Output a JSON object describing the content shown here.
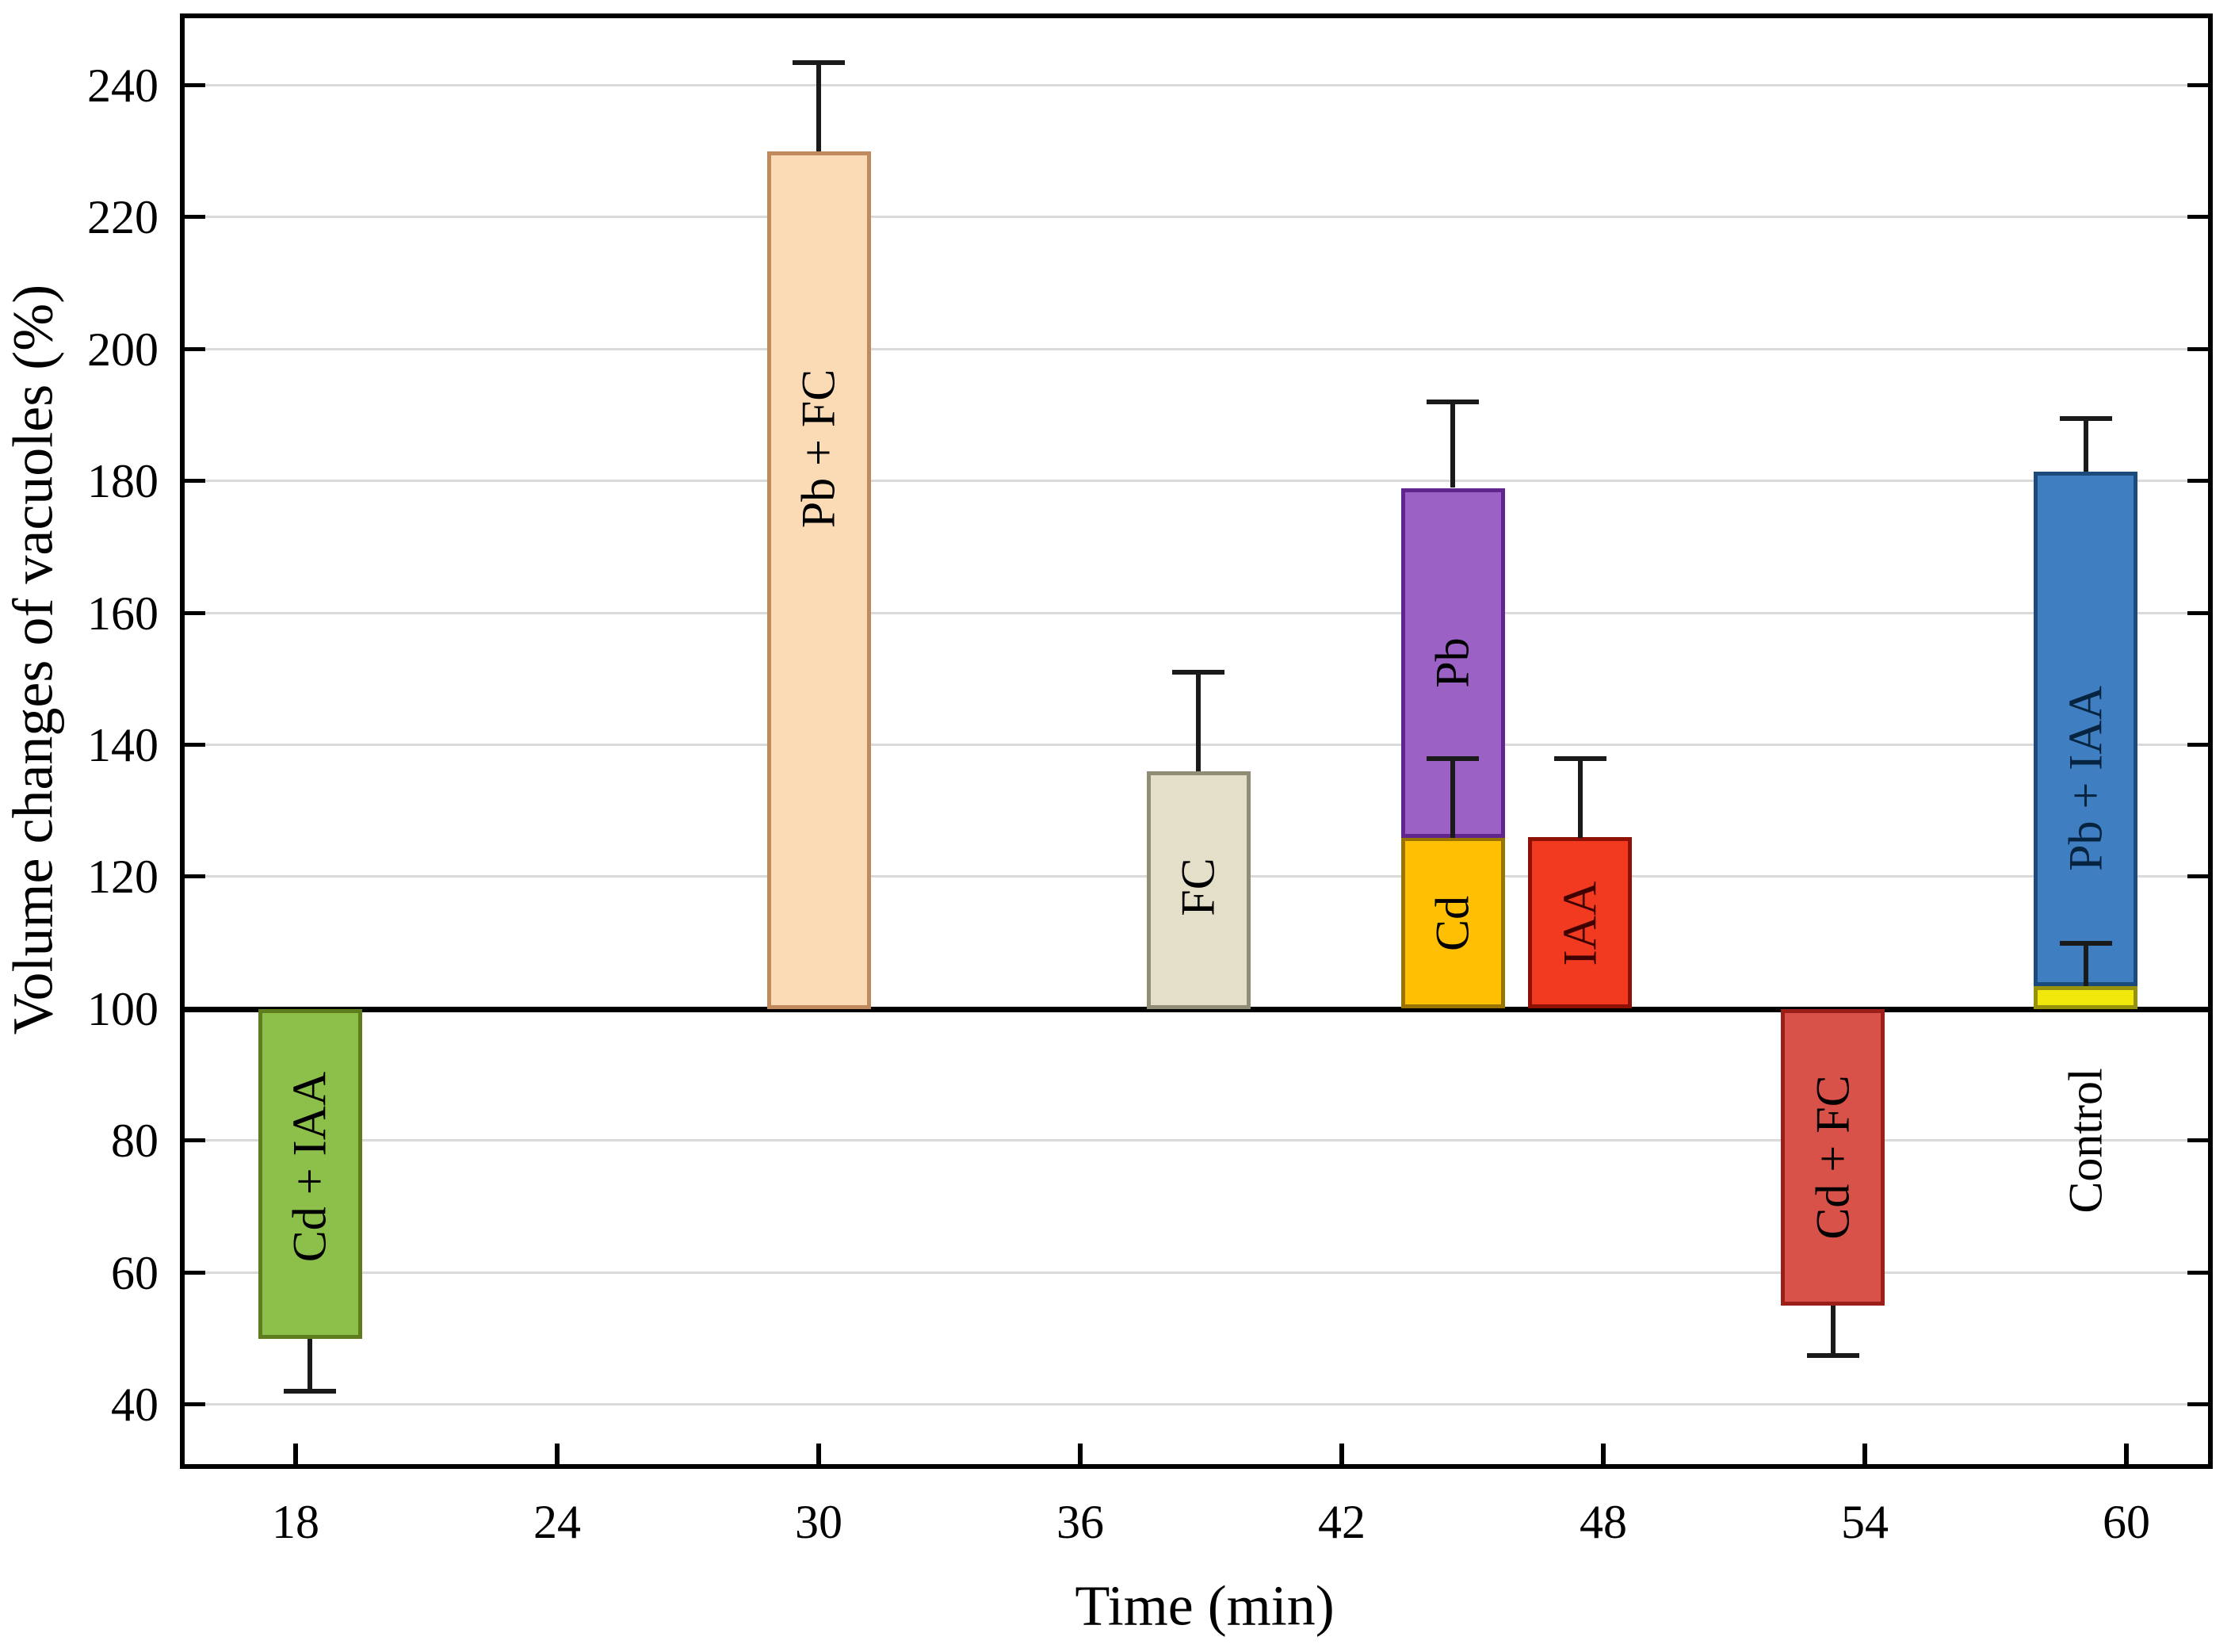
{
  "chart_data": {
    "type": "bar",
    "title": "",
    "xlabel": "Time (min)",
    "ylabel": "Volume changes of vacuoles (%)",
    "xlim": [
      15.4,
      62.0
    ],
    "ylim": [
      28.5,
      250.7
    ],
    "x_ticks": [
      18,
      24,
      30,
      36,
      42,
      48,
      54,
      60
    ],
    "y_ticks": [
      40,
      60,
      80,
      100,
      120,
      140,
      160,
      180,
      200,
      220,
      240
    ],
    "baseline_value": 100,
    "grid": "horizontal gridlines every 20 units, light gray; full box frame with inward ticks on left, right and bottom axes",
    "legend_position": "none",
    "bar_width_min": 2.38,
    "bars": [
      {
        "label": "Cd + IAA",
        "x": 18.33,
        "from": 100,
        "to": 50,
        "err_to": 42,
        "fill": "#8CC04B",
        "border": "#5E7E1E",
        "label_v": 76,
        "label_color": "#000000"
      },
      {
        "label": "Pb + FC",
        "x": 30.0,
        "from": 100,
        "to": 230,
        "err_to": 243.5,
        "fill": "#FBDBB5",
        "border": "#C08B5C",
        "label_v": 185,
        "label_color": "#000000"
      },
      {
        "label": "FC",
        "x": 38.71,
        "from": 100,
        "to": 136,
        "err_to": 151,
        "fill": "#E3DFC8",
        "border": "#8F8D73",
        "label_v": 118.5,
        "label_color": "#000000"
      },
      {
        "label": "Cd",
        "x": 44.55,
        "from": 100,
        "to": 126,
        "err_to": 138,
        "fill": "#FFC003",
        "border": "#9A7400",
        "label_v": 113,
        "label_color": "#000000"
      },
      {
        "label": "Pb",
        "x": 44.55,
        "from": 126,
        "to": 179,
        "err_to": 192,
        "fill": "#9C61C5",
        "border": "#61258E",
        "label_v": 152.5,
        "label_color": "#000000"
      },
      {
        "label": "IAA",
        "x": 47.47,
        "from": 100,
        "to": 126,
        "err_to": 138,
        "fill": "#F23A20",
        "border": "#8F1004",
        "label_v": 113,
        "label_color": "#400000"
      },
      {
        "label": "Cd + FC",
        "x": 53.27,
        "from": 100,
        "to": 55,
        "err_to": 47.5,
        "fill": "#D95249",
        "border": "#9B1F18",
        "label_v": 77.5,
        "label_color": "#000000"
      },
      {
        "label": "Control",
        "x": 59.07,
        "from": 100,
        "to": 103.5,
        "err_to": 110,
        "fill": "#F1E90C",
        "border": "#97920B",
        "label_v": 80,
        "label_color": "#000000",
        "label_outside": true
      },
      {
        "label": "Pb + IAA",
        "x": 59.07,
        "from": 103.5,
        "to": 181.5,
        "err_to": 189.5,
        "fill": "#3E7EC1",
        "border": "#1C4B7B",
        "label_v": 135,
        "label_color": "#06233F"
      }
    ],
    "colors": {
      "background": "#FFFFFF",
      "axis": "#000000",
      "gridline": "#DADADA",
      "error_bar": "#1A1A1A",
      "text": "#000000"
    }
  }
}
